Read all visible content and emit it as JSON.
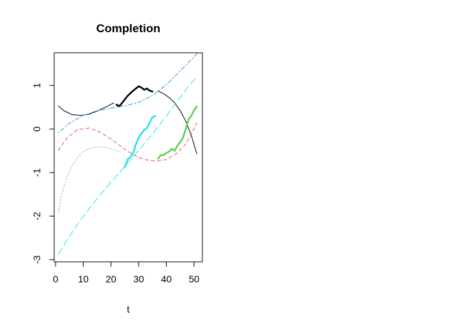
{
  "chart_data": {
    "type": "line",
    "title": "Completion",
    "xlabel": "t",
    "ylabel": "",
    "xlim": [
      -0.5,
      53
    ],
    "ylim": [
      -3.05,
      1.75
    ],
    "x_ticks": [
      0,
      10,
      20,
      30,
      40,
      50
    ],
    "y_ticks": [
      -3,
      -2,
      -1,
      0,
      1
    ],
    "grid": false,
    "series": [
      {
        "color": "#000000",
        "dash": "solid",
        "width": 1,
        "x": [
          1,
          3,
          6,
          9,
          12,
          15,
          18,
          21
        ],
        "y": [
          0.53,
          0.42,
          0.33,
          0.31,
          0.34,
          0.41,
          0.5,
          0.6
        ]
      },
      {
        "color": "#000000",
        "dash": "solid",
        "width": 1,
        "x": [
          37,
          39,
          41,
          43,
          45,
          47,
          49,
          51
        ],
        "y": [
          0.87,
          0.81,
          0.72,
          0.6,
          0.42,
          0.18,
          -0.15,
          -0.57
        ]
      },
      {
        "color": "#000000",
        "dash": "solid",
        "width": 2.5,
        "x": [
          22,
          23,
          24,
          25,
          26,
          27,
          28,
          29,
          30,
          31,
          32,
          33,
          34,
          35
        ],
        "y": [
          0.56,
          0.52,
          0.6,
          0.68,
          0.76,
          0.82,
          0.88,
          0.93,
          0.98,
          0.95,
          0.9,
          0.93,
          0.88,
          0.86
        ]
      },
      {
        "color": "#DF536B",
        "dash": "dashed",
        "width": 1,
        "x": [
          1,
          4,
          8,
          12,
          16,
          20,
          24,
          28,
          32,
          36,
          40,
          44,
          47,
          49,
          51
        ],
        "y": [
          -0.49,
          -0.21,
          -0.01,
          0.02,
          -0.07,
          -0.23,
          -0.42,
          -0.59,
          -0.7,
          -0.74,
          -0.7,
          -0.55,
          -0.34,
          -0.12,
          0.14
        ]
      },
      {
        "color": "#61D04F",
        "dash": "dotted",
        "width": 1,
        "x": [
          1,
          2,
          4,
          6,
          8,
          10,
          12,
          14,
          16,
          18,
          20,
          22,
          24
        ],
        "y": [
          -1.92,
          -1.55,
          -1.12,
          -0.84,
          -0.65,
          -0.52,
          -0.45,
          -0.42,
          -0.41,
          -0.42,
          -0.45,
          -0.5,
          -0.55
        ]
      },
      {
        "color": "#61D04F",
        "dash": "solid",
        "width": 2.5,
        "x": [
          37,
          38,
          39,
          40,
          41,
          42,
          43,
          44,
          45,
          46,
          47,
          48,
          49,
          50,
          51
        ],
        "y": [
          -0.68,
          -0.6,
          -0.6,
          -0.55,
          -0.52,
          -0.45,
          -0.5,
          -0.38,
          -0.3,
          -0.2,
          0.0,
          0.22,
          0.3,
          0.43,
          0.52
        ]
      },
      {
        "color": "#28E2E5",
        "dash": "longdash",
        "width": 1,
        "x": [
          1,
          4,
          8,
          12,
          16,
          20,
          24,
          28,
          32,
          36,
          40,
          44,
          48,
          51
        ],
        "y": [
          -2.87,
          -2.56,
          -2.18,
          -1.84,
          -1.52,
          -1.22,
          -0.93,
          -0.64,
          -0.34,
          -0.03,
          0.3,
          0.64,
          0.98,
          1.2
        ]
      },
      {
        "color": "#28E2E5",
        "dash": "solid",
        "width": 2.5,
        "x": [
          25,
          26,
          27,
          28,
          29,
          30,
          31,
          32,
          33,
          34,
          35,
          36
        ],
        "y": [
          -0.88,
          -0.7,
          -0.65,
          -0.55,
          -0.35,
          -0.2,
          -0.1,
          -0.02,
          0.02,
          0.15,
          0.27,
          0.3
        ]
      },
      {
        "color": "#2297E6",
        "dash": "dotdash",
        "width": 1,
        "x": [
          1,
          5,
          10,
          15,
          20,
          25,
          30,
          35,
          40,
          45,
          50,
          53
        ],
        "y": [
          -0.09,
          0.13,
          0.31,
          0.42,
          0.48,
          0.53,
          0.61,
          0.77,
          1.02,
          1.33,
          1.66,
          1.85
        ]
      }
    ]
  }
}
